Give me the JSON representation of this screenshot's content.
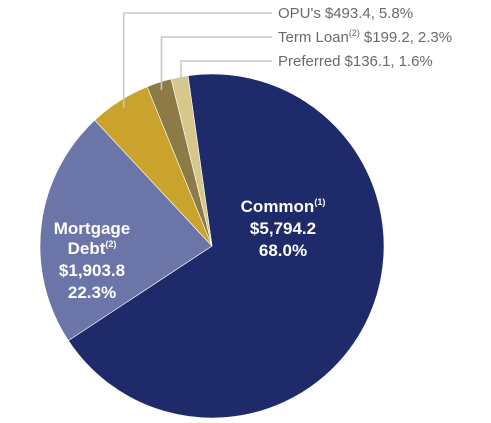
{
  "chart_data": {
    "type": "pie",
    "categories": [
      "Common",
      "Mortgage Debt",
      "OPU's",
      "Term Loan",
      "Preferred"
    ],
    "notes": [
      "(1)",
      "(2)",
      null,
      "(2)",
      null
    ],
    "values": [
      5794.2,
      1903.8,
      493.4,
      199.2,
      136.1
    ],
    "value_labels": [
      "$5,794.2",
      "$1,903.8",
      "$493.4,",
      "$199.2,",
      "$136.1,"
    ],
    "percents": [
      68.0,
      22.3,
      5.8,
      2.3,
      1.6
    ],
    "percent_labels": [
      "68.0%",
      "22.3%",
      "5.8%",
      "2.3%",
      "1.6%"
    ],
    "colors": [
      "#1f2a6b",
      "#6c75a8",
      "#c9a32c",
      "#8c7b47",
      "#d8c78b"
    ]
  }
}
